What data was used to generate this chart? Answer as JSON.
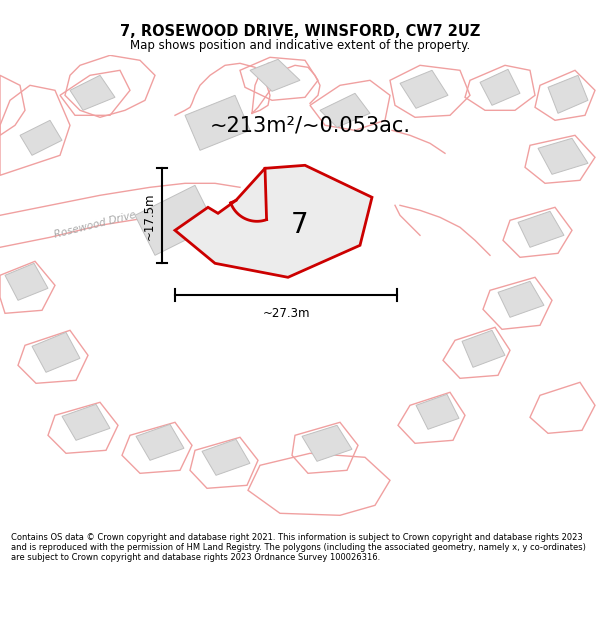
{
  "title_line1": "7, ROSEWOOD DRIVE, WINSFORD, CW7 2UZ",
  "title_line2": "Map shows position and indicative extent of the property.",
  "footer_text": "Contains OS data © Crown copyright and database right 2021. This information is subject to Crown copyright and database rights 2023 and is reproduced with the permission of HM Land Registry. The polygons (including the associated geometry, namely x, y co-ordinates) are subject to Crown copyright and database rights 2023 Ordnance Survey 100026316.",
  "area_label": "~213m²/~0.053ac.",
  "number_label": "7",
  "width_label": "~27.3m",
  "height_label": "~17.5m",
  "road_label": "Rosewood Drive",
  "background_color": "#ffffff",
  "map_bg": "#ffffff",
  "highlight_color": "#cc0000",
  "plot_fill": "#e8e8e8",
  "light_red": "#f0a0a0",
  "grey_fill": "#dedede",
  "grey_edge": "#c0c0c0"
}
